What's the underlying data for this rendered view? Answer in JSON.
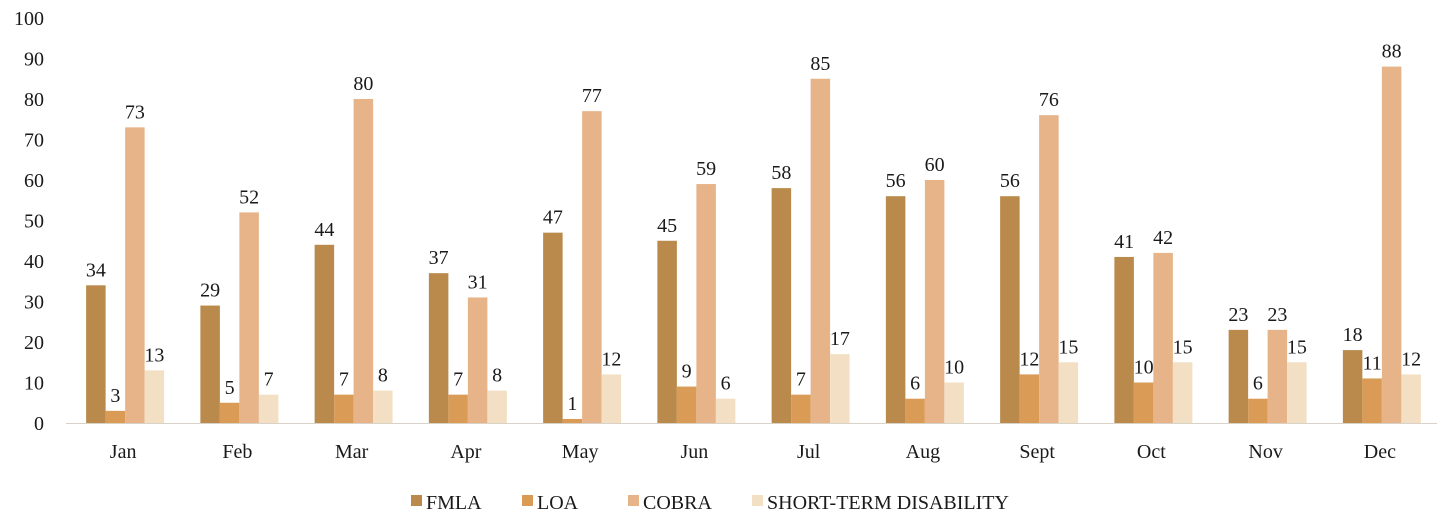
{
  "chart_data": {
    "type": "bar",
    "title": "",
    "xlabel": "",
    "ylabel": "",
    "ylim": [
      0,
      100
    ],
    "yticks": [
      0,
      10,
      20,
      30,
      40,
      50,
      60,
      70,
      80,
      90,
      100
    ],
    "grid": false,
    "legend_position": "bottom",
    "categories": [
      "Jan",
      "Feb",
      "Mar",
      "Apr",
      "May",
      "Jun",
      "Jul",
      "Aug",
      "Sept",
      "Oct",
      "Nov",
      "Dec"
    ],
    "series": [
      {
        "name": "FMLA",
        "color": "#b98a4c",
        "values": [
          34,
          29,
          44,
          37,
          47,
          45,
          58,
          56,
          56,
          41,
          23,
          18
        ]
      },
      {
        "name": "LOA",
        "color": "#d99b55",
        "values": [
          3,
          5,
          7,
          7,
          1,
          9,
          7,
          6,
          12,
          10,
          6,
          11
        ]
      },
      {
        "name": "COBRA",
        "color": "#e6b488",
        "values": [
          73,
          52,
          80,
          31,
          77,
          59,
          85,
          60,
          76,
          42,
          23,
          88
        ]
      },
      {
        "name": "SHORT-TERM DISABILITY",
        "color": "#f3e0c4",
        "values": [
          13,
          7,
          8,
          8,
          12,
          6,
          17,
          10,
          15,
          15,
          15,
          12
        ]
      }
    ]
  }
}
